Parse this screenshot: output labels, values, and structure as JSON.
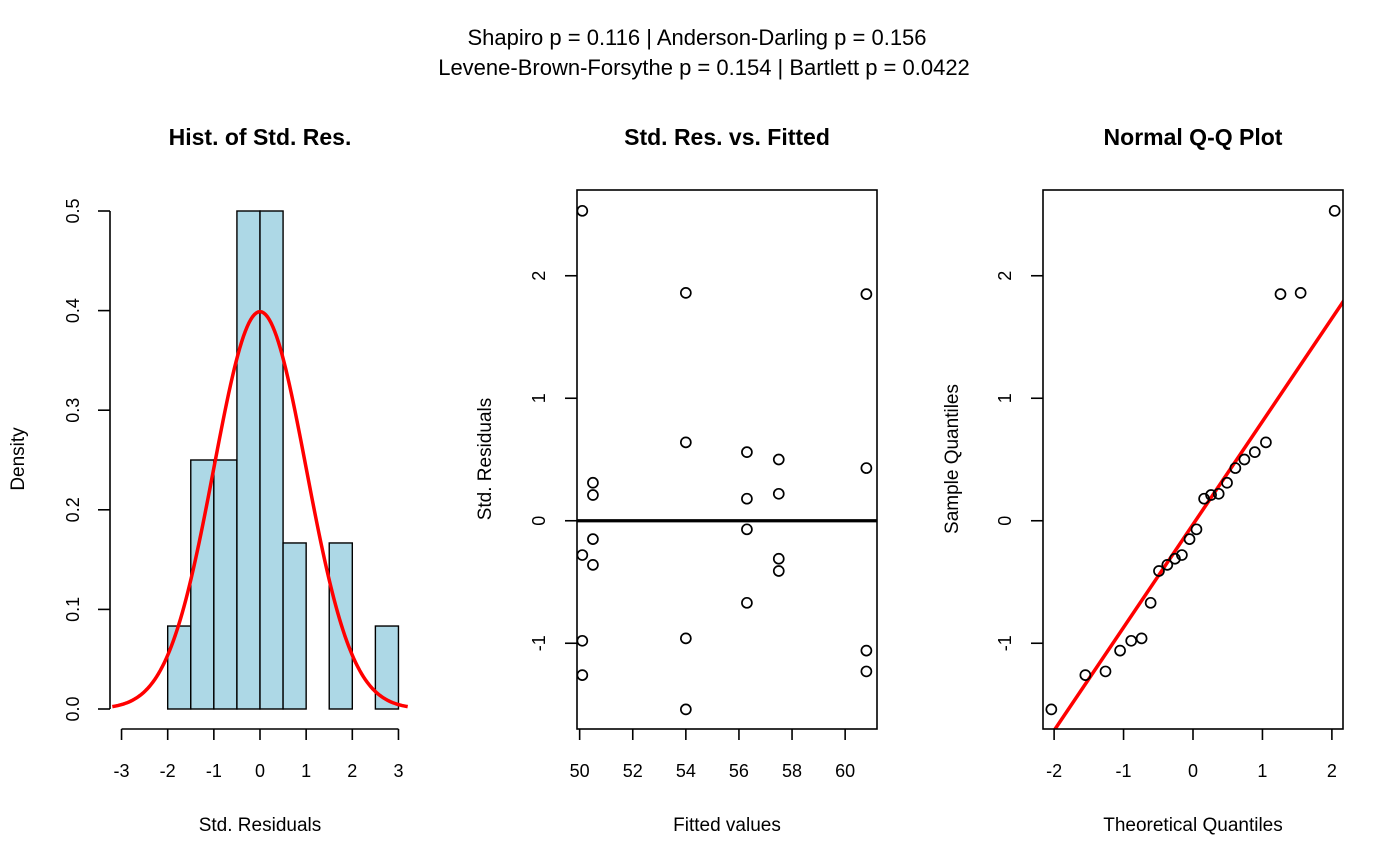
{
  "figure": {
    "subtitle_line1": "Shapiro p = 0.116 | Anderson-Darling p = 0.156",
    "subtitle_line2": "Levene-Brown-Forsythe p = 0.154 | Bartlett p = 0.0422"
  },
  "colors": {
    "bar_fill": "#add8e6",
    "curve": "#ff0000",
    "axis": "#000000"
  },
  "chart_data": [
    {
      "type": "bar",
      "title": "Hist. of Std. Res.",
      "xlabel": "Std. Residuals",
      "ylabel": "Density",
      "xlim": [
        -3.25,
        3.25
      ],
      "ylim": [
        0,
        0.5
      ],
      "x_ticks": [
        "-3",
        "-2",
        "-1",
        "0",
        "1",
        "2",
        "3"
      ],
      "y_ticks": [
        "0.0",
        "0.1",
        "0.2",
        "0.3",
        "0.4",
        "0.5"
      ],
      "bins": [
        {
          "from": -2.0,
          "to": -1.5,
          "density": 0.0833
        },
        {
          "from": -1.5,
          "to": -1.0,
          "density": 0.25
        },
        {
          "from": -1.0,
          "to": -0.5,
          "density": 0.25
        },
        {
          "from": -0.5,
          "to": 0.0,
          "density": 0.5
        },
        {
          "from": 0.0,
          "to": 0.5,
          "density": 0.5
        },
        {
          "from": 0.5,
          "to": 1.0,
          "density": 0.1667
        },
        {
          "from": 1.0,
          "to": 1.5,
          "density": 0.0
        },
        {
          "from": 1.5,
          "to": 2.0,
          "density": 0.1667
        },
        {
          "from": 2.0,
          "to": 2.5,
          "density": 0.0
        },
        {
          "from": 2.5,
          "to": 3.0,
          "density": 0.0833
        }
      ],
      "overlay": {
        "type": "normal-density",
        "mean": 0,
        "sd": 1,
        "x_range": [
          -3.2,
          3.2
        ],
        "color": "#ff0000"
      }
    },
    {
      "type": "scatter",
      "title": "Std. Res. vs. Fitted",
      "xlabel": "Fitted values",
      "ylabel": "Std. Residuals",
      "xlim": [
        49.9,
        61.2
      ],
      "ylim": [
        -1.7,
        2.7
      ],
      "x_ticks": [
        "50",
        "52",
        "54",
        "56",
        "58",
        "60"
      ],
      "y_ticks": [
        "-1",
        "0",
        "1",
        "2"
      ],
      "reference_line": {
        "y": 0,
        "color": "#000000"
      },
      "points": [
        {
          "x": 50.1,
          "y": 2.53
        },
        {
          "x": 50.1,
          "y": -0.28
        },
        {
          "x": 50.1,
          "y": -0.98
        },
        {
          "x": 50.1,
          "y": -1.26
        },
        {
          "x": 50.5,
          "y": 0.31
        },
        {
          "x": 50.5,
          "y": 0.21
        },
        {
          "x": 50.5,
          "y": -0.15
        },
        {
          "x": 50.5,
          "y": -0.36
        },
        {
          "x": 54.0,
          "y": 1.86
        },
        {
          "x": 54.0,
          "y": 0.64
        },
        {
          "x": 54.0,
          "y": -0.96
        },
        {
          "x": 54.0,
          "y": -1.54
        },
        {
          "x": 56.3,
          "y": 0.56
        },
        {
          "x": 56.3,
          "y": 0.18
        },
        {
          "x": 56.3,
          "y": -0.07
        },
        {
          "x": 56.3,
          "y": -0.67
        },
        {
          "x": 57.5,
          "y": 0.5
        },
        {
          "x": 57.5,
          "y": 0.22
        },
        {
          "x": 57.5,
          "y": -0.31
        },
        {
          "x": 57.5,
          "y": -0.41
        },
        {
          "x": 60.8,
          "y": 1.85
        },
        {
          "x": 60.8,
          "y": 0.43
        },
        {
          "x": 60.8,
          "y": -1.06
        },
        {
          "x": 60.8,
          "y": -1.23
        }
      ]
    },
    {
      "type": "scatter",
      "title": "Normal Q-Q Plot",
      "xlabel": "Theoretical Quantiles",
      "ylabel": "Sample Quantiles",
      "xlim": [
        -2.16,
        2.16
      ],
      "ylim": [
        -1.7,
        2.7
      ],
      "x_ticks": [
        "-2",
        "-1",
        "0",
        "1",
        "2"
      ],
      "y_ticks": [
        "-1",
        "0",
        "1",
        "2"
      ],
      "reference_line": {
        "x1": -2.2,
        "y1": -1.88,
        "x2": 2.2,
        "y2": 1.82,
        "color": "#ff0000"
      },
      "points": [
        {
          "x": -2.04,
          "y": -1.54
        },
        {
          "x": -1.55,
          "y": -1.26
        },
        {
          "x": -1.26,
          "y": -1.23
        },
        {
          "x": -1.05,
          "y": -1.06
        },
        {
          "x": -0.89,
          "y": -0.98
        },
        {
          "x": -0.74,
          "y": -0.96
        },
        {
          "x": -0.61,
          "y": -0.67
        },
        {
          "x": -0.49,
          "y": -0.41
        },
        {
          "x": -0.37,
          "y": -0.36
        },
        {
          "x": -0.26,
          "y": -0.31
        },
        {
          "x": -0.16,
          "y": -0.28
        },
        {
          "x": -0.05,
          "y": -0.15
        },
        {
          "x": 0.05,
          "y": -0.07
        },
        {
          "x": 0.16,
          "y": 0.18
        },
        {
          "x": 0.26,
          "y": 0.21
        },
        {
          "x": 0.37,
          "y": 0.22
        },
        {
          "x": 0.49,
          "y": 0.31
        },
        {
          "x": 0.61,
          "y": 0.43
        },
        {
          "x": 0.74,
          "y": 0.5
        },
        {
          "x": 0.89,
          "y": 0.56
        },
        {
          "x": 1.05,
          "y": 0.64
        },
        {
          "x": 1.26,
          "y": 1.85
        },
        {
          "x": 1.55,
          "y": 1.86
        },
        {
          "x": 2.04,
          "y": 2.53
        }
      ]
    }
  ]
}
